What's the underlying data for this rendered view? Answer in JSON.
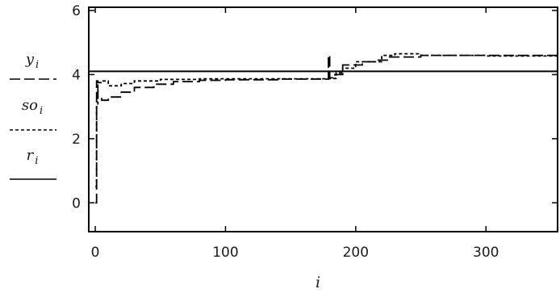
{
  "chart_data": {
    "type": "line",
    "xlabel": "i",
    "xlim": [
      -5,
      355
    ],
    "ylim": [
      -0.9,
      6.1
    ],
    "x_ticks": [
      0,
      100,
      200,
      300
    ],
    "y_ticks": [
      0,
      2,
      4,
      6
    ],
    "x_tick_labels": [
      "0",
      "100",
      "200",
      "300"
    ],
    "y_tick_labels": [
      "0",
      "2",
      "4",
      "6"
    ],
    "legend": [
      {
        "var": "y",
        "sub": "i",
        "style": "long-dash"
      },
      {
        "var": "so",
        "sub": "i",
        "style": "short-dash"
      },
      {
        "var": "r",
        "sub": "i",
        "style": "solid"
      }
    ],
    "series": [
      {
        "key": "y",
        "style": "long-dash",
        "points": [
          [
            0,
            0.0
          ],
          [
            1,
            3.8
          ],
          [
            2,
            3.3
          ],
          [
            5,
            3.2
          ],
          [
            10,
            3.3
          ],
          [
            20,
            3.45
          ],
          [
            30,
            3.6
          ],
          [
            45,
            3.7
          ],
          [
            60,
            3.78
          ],
          [
            80,
            3.82
          ],
          [
            100,
            3.84
          ],
          [
            140,
            3.86
          ],
          [
            178,
            3.86
          ],
          [
            179,
            4.6
          ],
          [
            180,
            3.9
          ],
          [
            184,
            4.0
          ],
          [
            190,
            4.3
          ],
          [
            205,
            4.4
          ],
          [
            215,
            4.45
          ],
          [
            225,
            4.55
          ],
          [
            250,
            4.6
          ],
          [
            300,
            4.6
          ],
          [
            355,
            4.6
          ]
        ]
      },
      {
        "key": "so",
        "style": "short-dash",
        "points": [
          [
            0,
            0.5
          ],
          [
            1,
            3.0
          ],
          [
            2,
            3.75
          ],
          [
            5,
            3.8
          ],
          [
            10,
            3.65
          ],
          [
            20,
            3.72
          ],
          [
            30,
            3.8
          ],
          [
            50,
            3.85
          ],
          [
            80,
            3.87
          ],
          [
            120,
            3.87
          ],
          [
            178,
            3.87
          ],
          [
            180,
            3.88
          ],
          [
            185,
            4.05
          ],
          [
            190,
            4.2
          ],
          [
            200,
            4.4
          ],
          [
            220,
            4.6
          ],
          [
            230,
            4.65
          ],
          [
            250,
            4.6
          ],
          [
            300,
            4.58
          ],
          [
            355,
            4.58
          ]
        ]
      },
      {
        "key": "r",
        "style": "solid",
        "points": [
          [
            -5,
            4.1
          ],
          [
            355,
            4.1
          ]
        ]
      }
    ]
  }
}
